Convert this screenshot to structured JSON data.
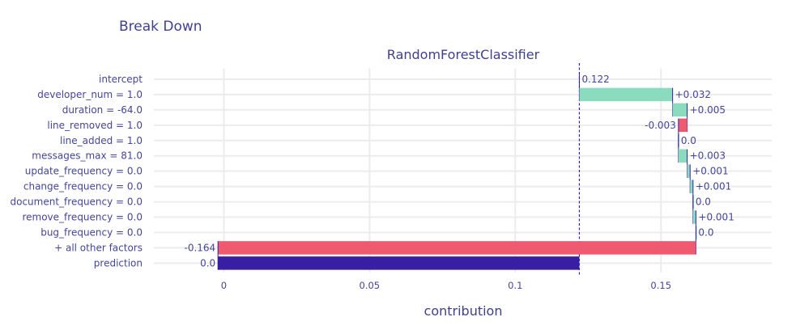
{
  "chart_data": {
    "type": "bar",
    "subtype": "break-down-waterfall",
    "title": "Break Down",
    "subtitle": "RandomForestClassifier",
    "xlabel": "contribution",
    "xlim": [
      -0.024,
      0.188
    ],
    "xticks": [
      0,
      0.05,
      0.1,
      0.15
    ],
    "xtick_labels": [
      "0",
      "0.05",
      "0.1",
      "0.15"
    ],
    "intercept": 0.122,
    "bars": [
      {
        "label": "intercept",
        "start": 0.122,
        "end": 0.122,
        "text": "0.122",
        "kind": "intercept"
      },
      {
        "label": "developer_num = 1.0",
        "start": 0.122,
        "end": 0.154,
        "text": "+0.032",
        "kind": "positive"
      },
      {
        "label": "duration = -64.0",
        "start": 0.154,
        "end": 0.159,
        "text": "+0.005",
        "kind": "positive"
      },
      {
        "label": "line_removed = 1.0",
        "start": 0.159,
        "end": 0.156,
        "text": "-0.003",
        "kind": "negative"
      },
      {
        "label": "line_added = 1.0",
        "start": 0.156,
        "end": 0.156,
        "text": "0.0",
        "kind": "positive"
      },
      {
        "label": "messages_max = 81.0",
        "start": 0.156,
        "end": 0.159,
        "text": "+0.003",
        "kind": "positive"
      },
      {
        "label": "update_frequency = 0.0",
        "start": 0.159,
        "end": 0.16,
        "text": "+0.001",
        "kind": "positive"
      },
      {
        "label": "change_frequency = 0.0",
        "start": 0.16,
        "end": 0.161,
        "text": "+0.001",
        "kind": "positive"
      },
      {
        "label": "document_frequency = 0.0",
        "start": 0.161,
        "end": 0.161,
        "text": "0.0",
        "kind": "positive"
      },
      {
        "label": "remove_frequency = 0.0",
        "start": 0.161,
        "end": 0.162,
        "text": "+0.001",
        "kind": "positive"
      },
      {
        "label": "bug_frequency = 0.0",
        "start": 0.162,
        "end": 0.162,
        "text": "0.0",
        "kind": "positive"
      },
      {
        "label": "+ all other factors",
        "start": 0.162,
        "end": -0.002,
        "text": "-0.164",
        "kind": "negative"
      },
      {
        "label": "prediction",
        "start": -0.002,
        "end": 0.122,
        "text": "0.0",
        "kind": "prediction"
      }
    ],
    "colors": {
      "positive": "#8bdcbe",
      "negative": "#f05a71",
      "prediction": "#371ea3",
      "connector": "#371ea3",
      "grid": "#ececec",
      "text": "#44449a"
    }
  }
}
